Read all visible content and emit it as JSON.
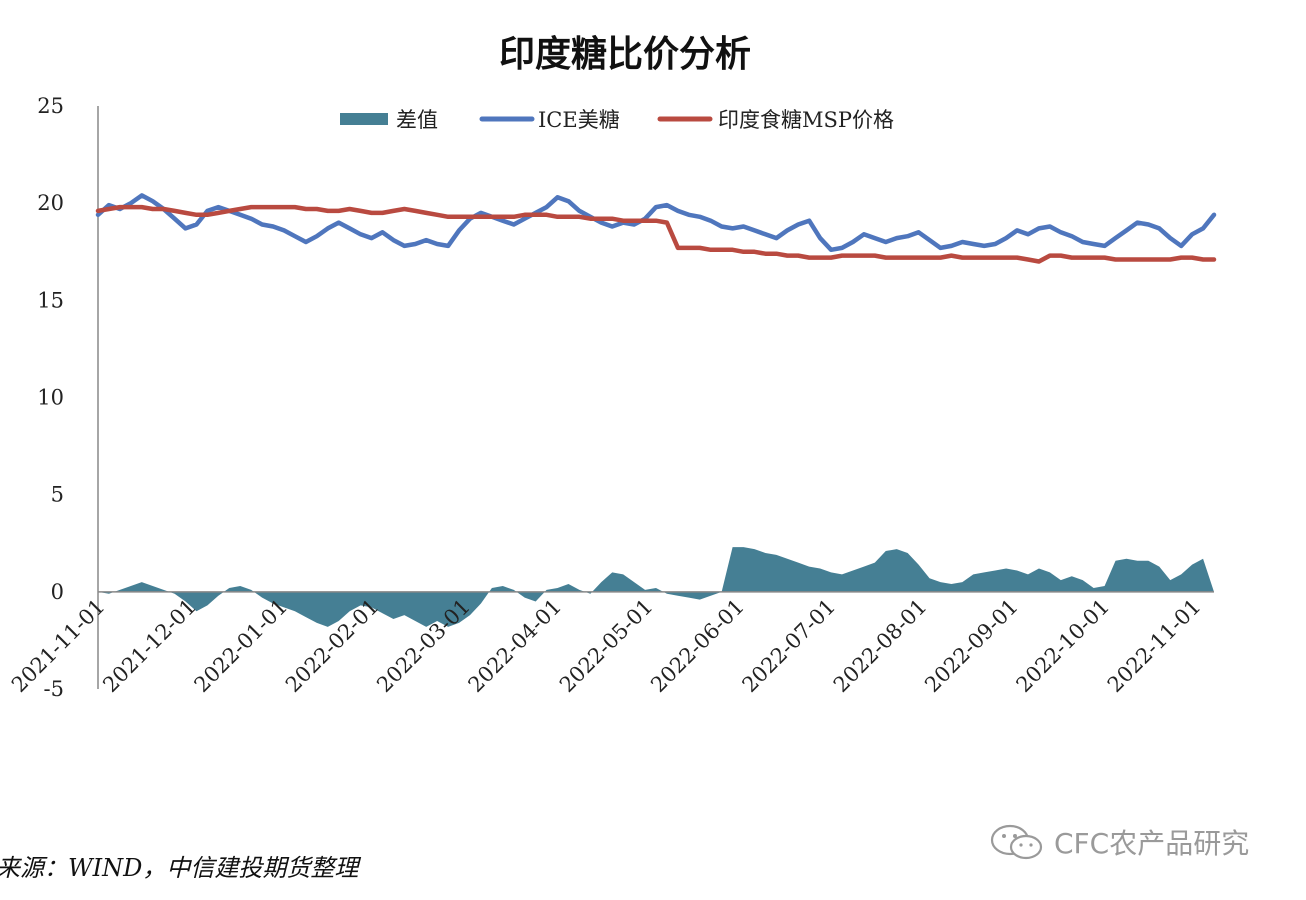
{
  "chart_data": {
    "type": "line",
    "title": "印度糖比价分析",
    "ylim": [
      -5,
      25
    ],
    "yticks": [
      "25",
      "20",
      "15",
      "10",
      "5",
      "0",
      "-5"
    ],
    "xticks": [
      "2021-11-01",
      "2021-12-01",
      "2022-01-01",
      "2022-02-01",
      "2022-03-01",
      "2022-04-01",
      "2022-05-01",
      "2022-06-01",
      "2022-07-01",
      "2022-08-01",
      "2022-09-01",
      "2022-10-01",
      "2022-11-01"
    ],
    "legend_position": "top",
    "series": [
      {
        "name": "差值",
        "kind": "area",
        "color": "#457f94",
        "points": [
          [
            0,
            0
          ],
          [
            5,
            -0.1
          ],
          [
            10,
            0.1
          ],
          [
            15,
            0.3
          ],
          [
            20,
            0.5
          ],
          [
            25,
            0.3
          ],
          [
            30,
            0.1
          ],
          [
            35,
            -0.1
          ],
          [
            40,
            -0.5
          ],
          [
            45,
            -1.0
          ],
          [
            50,
            -0.7
          ],
          [
            55,
            -0.2
          ],
          [
            60,
            0.2
          ],
          [
            65,
            0.3
          ],
          [
            70,
            0.1
          ],
          [
            75,
            -0.3
          ],
          [
            80,
            -0.6
          ],
          [
            85,
            -0.8
          ],
          [
            90,
            -1.0
          ],
          [
            95,
            -1.3
          ],
          [
            100,
            -1.6
          ],
          [
            105,
            -1.8
          ],
          [
            110,
            -1.5
          ],
          [
            115,
            -1.0
          ],
          [
            120,
            -0.7
          ],
          [
            125,
            -0.8
          ],
          [
            130,
            -1.1
          ],
          [
            135,
            -1.4
          ],
          [
            140,
            -1.2
          ],
          [
            145,
            -1.5
          ],
          [
            150,
            -1.8
          ],
          [
            155,
            -1.5
          ],
          [
            160,
            -1.8
          ],
          [
            165,
            -1.6
          ],
          [
            170,
            -1.2
          ],
          [
            175,
            -0.6
          ],
          [
            180,
            0.2
          ],
          [
            185,
            0.3
          ],
          [
            190,
            0.1
          ],
          [
            195,
            -0.3
          ],
          [
            200,
            -0.5
          ],
          [
            205,
            0.1
          ],
          [
            210,
            0.2
          ],
          [
            215,
            0.4
          ],
          [
            220,
            0.1
          ],
          [
            225,
            -0.1
          ],
          [
            230,
            0.5
          ],
          [
            235,
            1.0
          ],
          [
            240,
            0.9
          ],
          [
            245,
            0.5
          ],
          [
            250,
            0.1
          ],
          [
            255,
            0.2
          ],
          [
            260,
            -0.1
          ],
          [
            265,
            -0.2
          ],
          [
            270,
            -0.3
          ],
          [
            275,
            -0.4
          ],
          [
            280,
            -0.2
          ],
          [
            285,
            0
          ],
          [
            290,
            2.3
          ],
          [
            295,
            2.3
          ],
          [
            300,
            2.2
          ],
          [
            305,
            2.0
          ],
          [
            310,
            1.9
          ],
          [
            315,
            1.7
          ],
          [
            320,
            1.5
          ],
          [
            325,
            1.3
          ],
          [
            330,
            1.2
          ],
          [
            335,
            1.0
          ],
          [
            340,
            0.9
          ],
          [
            345,
            1.1
          ],
          [
            350,
            1.3
          ],
          [
            355,
            1.5
          ],
          [
            360,
            2.1
          ],
          [
            365,
            2.2
          ],
          [
            370,
            2.0
          ],
          [
            375,
            1.4
          ],
          [
            380,
            0.7
          ],
          [
            385,
            0.5
          ],
          [
            390,
            0.4
          ],
          [
            395,
            0.5
          ],
          [
            400,
            0.9
          ],
          [
            405,
            1.0
          ],
          [
            410,
            1.1
          ],
          [
            415,
            1.2
          ],
          [
            420,
            1.1
          ],
          [
            425,
            0.9
          ],
          [
            430,
            1.2
          ],
          [
            435,
            1.0
          ],
          [
            440,
            0.6
          ],
          [
            445,
            0.8
          ],
          [
            450,
            0.6
          ],
          [
            455,
            0.2
          ],
          [
            460,
            0.3
          ],
          [
            465,
            1.6
          ],
          [
            470,
            1.7
          ],
          [
            475,
            1.6
          ],
          [
            480,
            1.6
          ],
          [
            485,
            1.3
          ],
          [
            490,
            0.6
          ],
          [
            495,
            0.9
          ],
          [
            500,
            1.4
          ],
          [
            505,
            1.7
          ],
          [
            510,
            0
          ]
        ]
      },
      {
        "name": "ICE美糖",
        "kind": "line",
        "color": "#4f76bd",
        "points": [
          [
            0,
            19.4
          ],
          [
            5,
            19.9
          ],
          [
            10,
            19.7
          ],
          [
            15,
            20.0
          ],
          [
            20,
            20.4
          ],
          [
            25,
            20.1
          ],
          [
            30,
            19.7
          ],
          [
            35,
            19.2
          ],
          [
            40,
            18.7
          ],
          [
            45,
            18.9
          ],
          [
            50,
            19.6
          ],
          [
            55,
            19.8
          ],
          [
            60,
            19.6
          ],
          [
            65,
            19.4
          ],
          [
            70,
            19.2
          ],
          [
            75,
            18.9
          ],
          [
            80,
            18.8
          ],
          [
            85,
            18.6
          ],
          [
            90,
            18.3
          ],
          [
            95,
            18.0
          ],
          [
            100,
            18.3
          ],
          [
            105,
            18.7
          ],
          [
            110,
            19.0
          ],
          [
            115,
            18.7
          ],
          [
            120,
            18.4
          ],
          [
            125,
            18.2
          ],
          [
            130,
            18.5
          ],
          [
            135,
            18.1
          ],
          [
            140,
            17.8
          ],
          [
            145,
            17.9
          ],
          [
            150,
            18.1
          ],
          [
            155,
            17.9
          ],
          [
            160,
            17.8
          ],
          [
            165,
            18.6
          ],
          [
            170,
            19.2
          ],
          [
            175,
            19.5
          ],
          [
            180,
            19.3
          ],
          [
            185,
            19.1
          ],
          [
            190,
            18.9
          ],
          [
            195,
            19.2
          ],
          [
            200,
            19.5
          ],
          [
            205,
            19.8
          ],
          [
            210,
            20.3
          ],
          [
            215,
            20.1
          ],
          [
            220,
            19.6
          ],
          [
            225,
            19.3
          ],
          [
            230,
            19.0
          ],
          [
            235,
            18.8
          ],
          [
            240,
            19.0
          ],
          [
            245,
            18.9
          ],
          [
            250,
            19.2
          ],
          [
            255,
            19.8
          ],
          [
            260,
            19.9
          ],
          [
            265,
            19.6
          ],
          [
            270,
            19.4
          ],
          [
            275,
            19.3
          ],
          [
            280,
            19.1
          ],
          [
            285,
            18.8
          ],
          [
            290,
            18.7
          ],
          [
            295,
            18.8
          ],
          [
            300,
            18.6
          ],
          [
            305,
            18.4
          ],
          [
            310,
            18.2
          ],
          [
            315,
            18.6
          ],
          [
            320,
            18.9
          ],
          [
            325,
            19.1
          ],
          [
            330,
            18.2
          ],
          [
            335,
            17.6
          ],
          [
            340,
            17.7
          ],
          [
            345,
            18.0
          ],
          [
            350,
            18.4
          ],
          [
            355,
            18.2
          ],
          [
            360,
            18.0
          ],
          [
            365,
            18.2
          ],
          [
            370,
            18.3
          ],
          [
            375,
            18.5
          ],
          [
            380,
            18.1
          ],
          [
            385,
            17.7
          ],
          [
            390,
            17.8
          ],
          [
            395,
            18.0
          ],
          [
            400,
            17.9
          ],
          [
            405,
            17.8
          ],
          [
            410,
            17.9
          ],
          [
            415,
            18.2
          ],
          [
            420,
            18.6
          ],
          [
            425,
            18.4
          ],
          [
            430,
            18.7
          ],
          [
            435,
            18.8
          ],
          [
            440,
            18.5
          ],
          [
            445,
            18.3
          ],
          [
            450,
            18.0
          ],
          [
            455,
            17.9
          ],
          [
            460,
            17.8
          ],
          [
            465,
            18.2
          ],
          [
            470,
            18.6
          ],
          [
            475,
            19.0
          ],
          [
            480,
            18.9
          ],
          [
            485,
            18.7
          ],
          [
            490,
            18.2
          ],
          [
            495,
            17.8
          ],
          [
            500,
            18.4
          ],
          [
            505,
            18.7
          ],
          [
            510,
            19.4
          ]
        ]
      },
      {
        "name": "印度食糖MSP价格",
        "kind": "line",
        "color": "#b94a40",
        "points": [
          [
            0,
            19.6
          ],
          [
            5,
            19.7
          ],
          [
            10,
            19.8
          ],
          [
            15,
            19.8
          ],
          [
            20,
            19.8
          ],
          [
            25,
            19.7
          ],
          [
            30,
            19.7
          ],
          [
            35,
            19.6
          ],
          [
            40,
            19.5
          ],
          [
            45,
            19.4
          ],
          [
            50,
            19.4
          ],
          [
            55,
            19.5
          ],
          [
            60,
            19.6
          ],
          [
            65,
            19.7
          ],
          [
            70,
            19.8
          ],
          [
            75,
            19.8
          ],
          [
            80,
            19.8
          ],
          [
            85,
            19.8
          ],
          [
            90,
            19.8
          ],
          [
            95,
            19.7
          ],
          [
            100,
            19.7
          ],
          [
            105,
            19.6
          ],
          [
            110,
            19.6
          ],
          [
            115,
            19.7
          ],
          [
            120,
            19.6
          ],
          [
            125,
            19.5
          ],
          [
            130,
            19.5
          ],
          [
            135,
            19.6
          ],
          [
            140,
            19.7
          ],
          [
            145,
            19.6
          ],
          [
            150,
            19.5
          ],
          [
            155,
            19.4
          ],
          [
            160,
            19.3
          ],
          [
            165,
            19.3
          ],
          [
            170,
            19.3
          ],
          [
            175,
            19.3
          ],
          [
            180,
            19.3
          ],
          [
            185,
            19.3
          ],
          [
            190,
            19.3
          ],
          [
            195,
            19.4
          ],
          [
            200,
            19.4
          ],
          [
            205,
            19.4
          ],
          [
            210,
            19.3
          ],
          [
            215,
            19.3
          ],
          [
            220,
            19.3
          ],
          [
            225,
            19.2
          ],
          [
            230,
            19.2
          ],
          [
            235,
            19.2
          ],
          [
            240,
            19.1
          ],
          [
            245,
            19.1
          ],
          [
            250,
            19.1
          ],
          [
            255,
            19.1
          ],
          [
            260,
            19.0
          ],
          [
            265,
            17.7
          ],
          [
            270,
            17.7
          ],
          [
            275,
            17.7
          ],
          [
            280,
            17.6
          ],
          [
            285,
            17.6
          ],
          [
            290,
            17.6
          ],
          [
            295,
            17.5
          ],
          [
            300,
            17.5
          ],
          [
            305,
            17.4
          ],
          [
            310,
            17.4
          ],
          [
            315,
            17.3
          ],
          [
            320,
            17.3
          ],
          [
            325,
            17.2
          ],
          [
            330,
            17.2
          ],
          [
            335,
            17.2
          ],
          [
            340,
            17.3
          ],
          [
            345,
            17.3
          ],
          [
            350,
            17.3
          ],
          [
            355,
            17.3
          ],
          [
            360,
            17.2
          ],
          [
            365,
            17.2
          ],
          [
            370,
            17.2
          ],
          [
            375,
            17.2
          ],
          [
            380,
            17.2
          ],
          [
            385,
            17.2
          ],
          [
            390,
            17.3
          ],
          [
            395,
            17.2
          ],
          [
            400,
            17.2
          ],
          [
            405,
            17.2
          ],
          [
            410,
            17.2
          ],
          [
            415,
            17.2
          ],
          [
            420,
            17.2
          ],
          [
            425,
            17.1
          ],
          [
            430,
            17.0
          ],
          [
            435,
            17.3
          ],
          [
            440,
            17.3
          ],
          [
            445,
            17.2
          ],
          [
            450,
            17.2
          ],
          [
            455,
            17.2
          ],
          [
            460,
            17.2
          ],
          [
            465,
            17.1
          ],
          [
            470,
            17.1
          ],
          [
            475,
            17.1
          ],
          [
            480,
            17.1
          ],
          [
            485,
            17.1
          ],
          [
            490,
            17.1
          ],
          [
            495,
            17.2
          ],
          [
            500,
            17.2
          ],
          [
            505,
            17.1
          ],
          [
            510,
            17.1
          ]
        ]
      }
    ]
  },
  "footer": {
    "source": "来源：WIND，中信建投期货整理",
    "watermark": "CFC农产品研究"
  }
}
